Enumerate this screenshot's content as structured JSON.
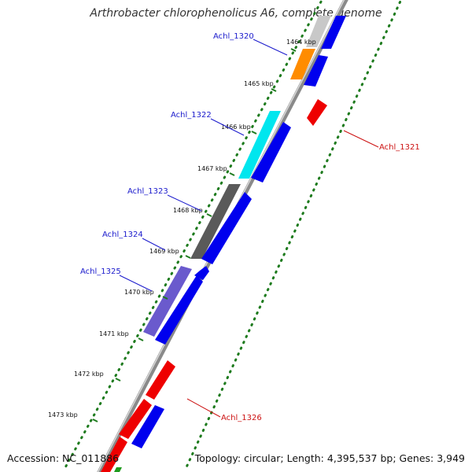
{
  "title": "Arthrobacter chlorophenolicus A6, complete genome",
  "accession": "Accession: NC_011886",
  "summary": "Topology: circular; Length: 4,395,537 bp; Genes: 3,949",
  "colors": {
    "forward_strand": "#0000ee",
    "reverse_strand": "#ee0000",
    "backbone": "#8a8a8a",
    "tick_dots": "#1e7b1e",
    "label_forward": "#1a1acc",
    "label_reverse": "#cc1111"
  },
  "scale_ticks": [
    {
      "label": "1464 kbp",
      "kbp": 1464
    },
    {
      "label": "1465 kbp",
      "kbp": 1465
    },
    {
      "label": "1466 kbp",
      "kbp": 1466
    },
    {
      "label": "1467 kbp",
      "kbp": 1467
    },
    {
      "label": "1468 kbp",
      "kbp": 1468
    },
    {
      "label": "1469 kbp",
      "kbp": 1469
    },
    {
      "label": "1470 kbp",
      "kbp": 1470
    },
    {
      "label": "1471 kbp",
      "kbp": 1471
    },
    {
      "label": "1472 kbp",
      "kbp": 1472
    },
    {
      "label": "1473 kbp",
      "kbp": 1473
    }
  ],
  "gene_labels": [
    {
      "name": "Achl_1320",
      "strand": "forward"
    },
    {
      "name": "Achl_1321",
      "strand": "reverse"
    },
    {
      "name": "Achl_1322",
      "strand": "forward"
    },
    {
      "name": "Achl_1323",
      "strand": "forward"
    },
    {
      "name": "Achl_1324",
      "strand": "forward"
    },
    {
      "name": "Achl_1325",
      "strand": "forward"
    },
    {
      "name": "Achl_1326",
      "strand": "reverse"
    }
  ]
}
